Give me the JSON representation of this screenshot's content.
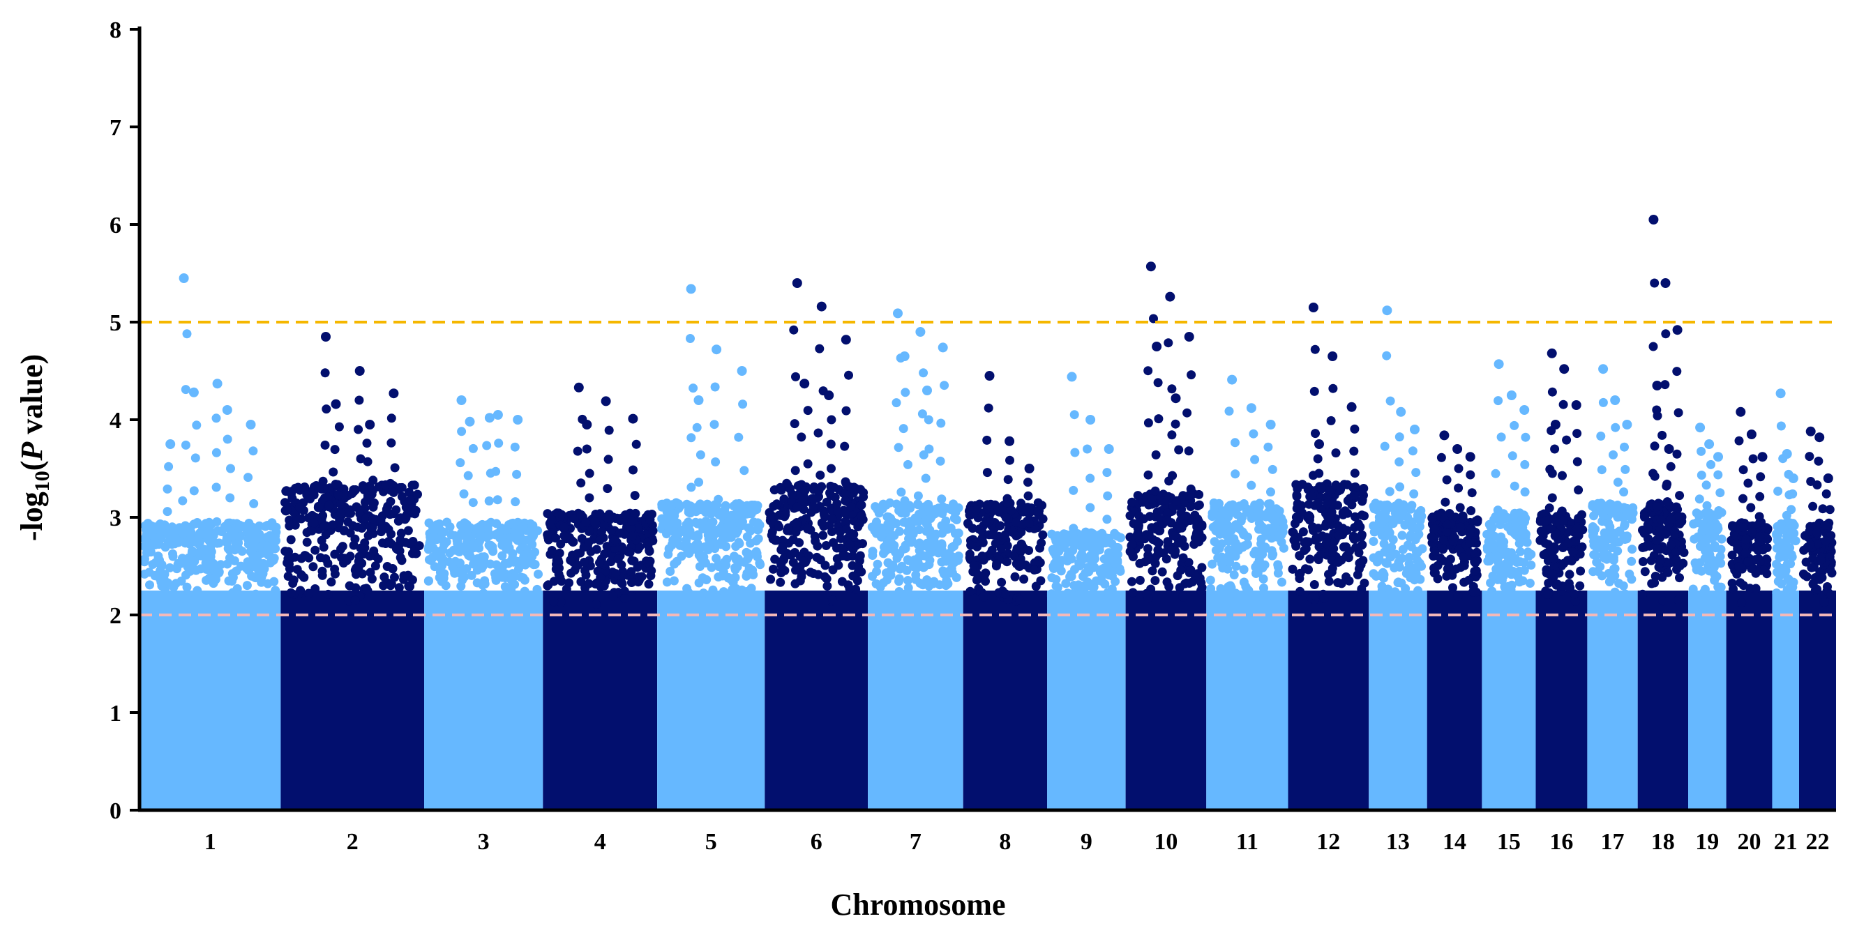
{
  "chart_data": {
    "type": "scatter",
    "subtype": "manhattan",
    "title": "",
    "xlabel": "Chromosome",
    "ylabel": {
      "prefix": "-log",
      "subscript": "10",
      "open": "(",
      "italic": "P",
      "suffix": " value)"
    },
    "ylim": [
      0,
      8
    ],
    "yticks": [
      "0",
      "1",
      "2",
      "3",
      "4",
      "5",
      "6",
      "7",
      "8"
    ],
    "grid": false,
    "legend": "none",
    "thresholds": [
      {
        "value": 5,
        "color": "#F5B700",
        "style": "dashed"
      },
      {
        "value": 2,
        "color": "#F4B8B8",
        "style": "dashed"
      }
    ],
    "colors": {
      "light": "#66B8FF",
      "dark": "#020F6E"
    },
    "chromosomes": [
      {
        "label": "1",
        "start": 0,
        "end": 12.6,
        "color": "light",
        "base": 2.6,
        "peaks": [
          5.45,
          4.37,
          3.95,
          4.28,
          4.1,
          3.75
        ]
      },
      {
        "label": "2",
        "start": 12.6,
        "end": 25.4,
        "color": "dark",
        "base": 3.0,
        "peaks": [
          4.85,
          4.5,
          4.27,
          4.16,
          3.95
        ]
      },
      {
        "label": "3",
        "start": 25.4,
        "end": 36.0,
        "color": "light",
        "base": 2.6,
        "peaks": [
          4.2,
          4.02,
          4.0,
          3.98,
          4.05
        ]
      },
      {
        "label": "4",
        "start": 36.0,
        "end": 46.2,
        "color": "dark",
        "base": 2.7,
        "peaks": [
          4.33,
          4.19,
          4.01,
          3.95
        ]
      },
      {
        "label": "5",
        "start": 46.2,
        "end": 55.8,
        "color": "light",
        "base": 2.8,
        "peaks": [
          5.34,
          4.72,
          4.5,
          4.2
        ]
      },
      {
        "label": "6",
        "start": 55.8,
        "end": 65.0,
        "color": "dark",
        "base": 3.0,
        "peaks": [
          5.4,
          5.16,
          4.82,
          4.37,
          4.25
        ]
      },
      {
        "label": "7",
        "start": 65.0,
        "end": 73.5,
        "color": "light",
        "base": 2.8,
        "peaks": [
          5.09,
          4.9,
          4.74,
          4.65,
          4.3
        ]
      },
      {
        "label": "8",
        "start": 73.5,
        "end": 81.0,
        "color": "dark",
        "base": 2.8,
        "peaks": [
          4.45,
          3.78,
          3.5
        ]
      },
      {
        "label": "9",
        "start": 81.0,
        "end": 88.0,
        "color": "light",
        "base": 2.5,
        "peaks": [
          4.44,
          4.0,
          3.7
        ]
      },
      {
        "label": "10",
        "start": 88.0,
        "end": 95.2,
        "color": "dark",
        "base": 2.9,
        "peaks": [
          5.57,
          5.26,
          4.85,
          4.75,
          4.22
        ]
      },
      {
        "label": "11",
        "start": 95.2,
        "end": 102.5,
        "color": "light",
        "base": 2.8,
        "peaks": [
          4.41,
          4.12,
          3.95
        ]
      },
      {
        "label": "12",
        "start": 102.5,
        "end": 109.7,
        "color": "dark",
        "base": 3.0,
        "peaks": [
          5.15,
          4.65,
          4.13,
          3.75
        ]
      },
      {
        "label": "13",
        "start": 109.7,
        "end": 114.9,
        "color": "light",
        "base": 2.8,
        "peaks": [
          5.12,
          4.08,
          3.9
        ]
      },
      {
        "label": "14",
        "start": 114.9,
        "end": 119.8,
        "color": "dark",
        "base": 2.7,
        "peaks": [
          3.84,
          3.7,
          3.62
        ]
      },
      {
        "label": "15",
        "start": 119.8,
        "end": 124.6,
        "color": "light",
        "base": 2.7,
        "peaks": [
          4.57,
          4.25,
          4.1
        ]
      },
      {
        "label": "16",
        "start": 124.6,
        "end": 129.2,
        "color": "dark",
        "base": 2.7,
        "peaks": [
          4.68,
          4.52,
          4.15,
          3.95
        ]
      },
      {
        "label": "17",
        "start": 129.2,
        "end": 133.7,
        "color": "light",
        "base": 2.8,
        "peaks": [
          4.52,
          4.2,
          3.95
        ]
      },
      {
        "label": "18",
        "start": 133.7,
        "end": 138.2,
        "color": "dark",
        "base": 2.8,
        "peaks": [
          6.05,
          5.4,
          4.92,
          4.35,
          3.7
        ]
      },
      {
        "label": "19",
        "start": 138.2,
        "end": 141.6,
        "color": "light",
        "base": 2.7,
        "peaks": [
          3.92,
          3.75,
          3.62
        ]
      },
      {
        "label": "20",
        "start": 141.6,
        "end": 145.7,
        "color": "dark",
        "base": 2.6,
        "peaks": [
          4.08,
          3.85,
          3.62
        ]
      },
      {
        "label": "21",
        "start": 145.7,
        "end": 148.1,
        "color": "light",
        "base": 2.6,
        "peaks": [
          4.27,
          3.65,
          3.4
        ]
      },
      {
        "label": "22",
        "start": 148.1,
        "end": 151.4,
        "color": "dark",
        "base": 2.6,
        "peaks": [
          3.88,
          3.82,
          3.4
        ]
      }
    ]
  }
}
